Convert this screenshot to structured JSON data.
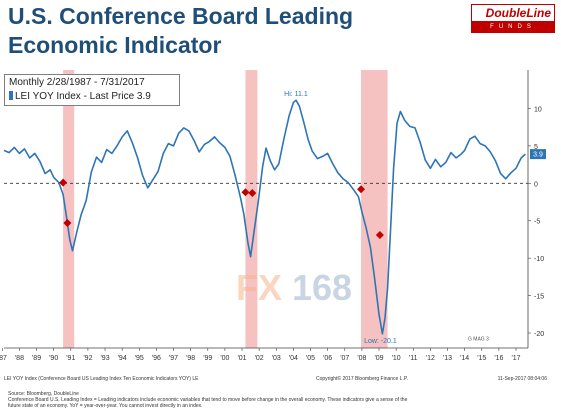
{
  "title": "U.S. Conference Board Leading Economic Indicator",
  "logo": {
    "top": "DoubleLine",
    "bottom": "FUNDS"
  },
  "legend": {
    "period": "Monthly 2/28/1987 - 7/31/2017",
    "series_label": "LEI YOY Index - Last Price 3.9"
  },
  "annotations": {
    "hi": "Hi: 11.1",
    "low": "Low: -20.1",
    "last_price": "3.9",
    "gmag": "G MAG 3"
  },
  "watermark": {
    "fx": "FX",
    "num": "168"
  },
  "bloomberg": {
    "left": "LEI YOY Index (Conference Board US Leading Index Ten Economic Indicators YOY) LE",
    "mid": "Copyright© 2017 Bloomberg Finance L.P.",
    "right": "11-Sep-2017 08:04:06"
  },
  "footnotes": [
    "Source: Bloomberg, DoubleLine",
    "Conference Board U.S. Leading Index = Leading indicators include economic variables that tend to move before change in the overall economy. These indicators give a sense of the",
    "future state of an economy. YoY = year-over-year. You cannot invest directly in an index."
  ],
  "colors": {
    "line": "#2e75b6",
    "title": "#1f4e79",
    "recession": "#f4b6b6",
    "marker": "#c00000",
    "brand": "#c00000"
  },
  "chart_data": {
    "type": "line",
    "x_unit": "year",
    "xlim": [
      1987.1,
      2017.7
    ],
    "ylim": [
      -22,
      13
    ],
    "y_ticks": [
      10,
      5,
      0,
      -5,
      -10,
      -15,
      -20
    ],
    "y_tick_labels": [
      "10",
      "5",
      "0",
      "-5",
      "-10",
      "-15",
      "-20"
    ],
    "x_tick_labels": [
      "'87",
      "'88",
      "'89",
      "'90",
      "'91",
      "'92",
      "'93",
      "'94",
      "'95",
      "'96",
      "'97",
      "'98",
      "'99",
      "'00",
      "'01",
      "'02",
      "'03",
      "'04",
      "'05",
      "'06",
      "'07",
      "'08",
      "'09",
      "'10",
      "'11",
      "'12",
      "'13",
      "'14",
      "'15",
      "'16",
      "'17"
    ],
    "x_tick_years": [
      1987,
      1988,
      1989,
      1990,
      1991,
      1992,
      1993,
      1994,
      1995,
      1996,
      1997,
      1998,
      1999,
      2000,
      2001,
      2002,
      2003,
      2004,
      2005,
      2006,
      2007,
      2008,
      2009,
      2010,
      2011,
      2012,
      2013,
      2014,
      2015,
      2016,
      2017
    ],
    "zero_line": true,
    "recessions": [
      [
        1990.55,
        1991.2
      ],
      [
        2001.2,
        2001.9
      ],
      [
        2007.95,
        2009.5
      ]
    ],
    "markers": [
      {
        "x": 1990.55,
        "y": 0.1
      },
      {
        "x": 1990.8,
        "y": -5.3
      },
      {
        "x": 2001.2,
        "y": -1.2
      },
      {
        "x": 2001.6,
        "y": -1.3
      },
      {
        "x": 2007.95,
        "y": -0.8
      },
      {
        "x": 2009.05,
        "y": -6.9
      }
    ],
    "series": [
      {
        "values": [
          [
            1987.1,
            4.4
          ],
          [
            1987.4,
            4.1
          ],
          [
            1987.7,
            4.8
          ],
          [
            1988.0,
            4.0
          ],
          [
            1988.3,
            4.6
          ],
          [
            1988.6,
            3.4
          ],
          [
            1988.9,
            4.0
          ],
          [
            1989.2,
            2.9
          ],
          [
            1989.5,
            1.3
          ],
          [
            1989.8,
            1.8
          ],
          [
            1990.0,
            0.8
          ],
          [
            1990.3,
            0.1
          ],
          [
            1990.55,
            -1.5
          ],
          [
            1990.75,
            -4.5
          ],
          [
            1990.95,
            -7.6
          ],
          [
            1991.1,
            -9.0
          ],
          [
            1991.35,
            -6.5
          ],
          [
            1991.6,
            -4.2
          ],
          [
            1991.9,
            -2.3
          ],
          [
            1992.2,
            1.5
          ],
          [
            1992.5,
            3.5
          ],
          [
            1992.8,
            2.8
          ],
          [
            1993.1,
            4.5
          ],
          [
            1993.4,
            4.0
          ],
          [
            1993.7,
            5.0
          ],
          [
            1994.0,
            6.2
          ],
          [
            1994.3,
            7.0
          ],
          [
            1994.6,
            5.4
          ],
          [
            1994.9,
            3.4
          ],
          [
            1995.2,
            1.0
          ],
          [
            1995.5,
            -0.6
          ],
          [
            1995.8,
            0.5
          ],
          [
            1996.1,
            1.6
          ],
          [
            1996.4,
            4.0
          ],
          [
            1996.7,
            5.3
          ],
          [
            1997.0,
            5.0
          ],
          [
            1997.3,
            6.7
          ],
          [
            1997.6,
            7.4
          ],
          [
            1997.9,
            7.0
          ],
          [
            1998.2,
            5.7
          ],
          [
            1998.5,
            4.2
          ],
          [
            1998.8,
            5.2
          ],
          [
            1999.1,
            5.6
          ],
          [
            1999.4,
            6.2
          ],
          [
            1999.7,
            5.4
          ],
          [
            2000.0,
            4.8
          ],
          [
            2000.3,
            3.6
          ],
          [
            2000.6,
            1.0
          ],
          [
            2000.9,
            -1.8
          ],
          [
            2001.1,
            -4.0
          ],
          [
            2001.35,
            -8.0
          ],
          [
            2001.5,
            -9.8
          ],
          [
            2001.7,
            -6.5
          ],
          [
            2001.95,
            -2.4
          ],
          [
            2002.2,
            2.2
          ],
          [
            2002.4,
            4.7
          ],
          [
            2002.65,
            3.0
          ],
          [
            2002.9,
            1.8
          ],
          [
            2003.15,
            2.6
          ],
          [
            2003.45,
            6.0
          ],
          [
            2003.75,
            9.0
          ],
          [
            2004.0,
            10.8
          ],
          [
            2004.15,
            11.1
          ],
          [
            2004.35,
            10.3
          ],
          [
            2004.6,
            8.2
          ],
          [
            2004.85,
            5.9
          ],
          [
            2005.1,
            4.3
          ],
          [
            2005.4,
            3.3
          ],
          [
            2005.7,
            3.6
          ],
          [
            2006.0,
            4.0
          ],
          [
            2006.3,
            2.6
          ],
          [
            2006.6,
            1.4
          ],
          [
            2006.9,
            0.6
          ],
          [
            2007.2,
            0.1
          ],
          [
            2007.5,
            -0.8
          ],
          [
            2007.8,
            -1.8
          ],
          [
            2008.0,
            -3.8
          ],
          [
            2008.25,
            -6.0
          ],
          [
            2008.5,
            -8.6
          ],
          [
            2008.75,
            -12.8
          ],
          [
            2009.0,
            -17.5
          ],
          [
            2009.2,
            -20.1
          ],
          [
            2009.35,
            -18.0
          ],
          [
            2009.5,
            -14.0
          ],
          [
            2009.7,
            -5.0
          ],
          [
            2009.85,
            2.0
          ],
          [
            2010.05,
            8.0
          ],
          [
            2010.25,
            9.6
          ],
          [
            2010.5,
            8.4
          ],
          [
            2010.8,
            7.6
          ],
          [
            2011.1,
            7.4
          ],
          [
            2011.4,
            5.5
          ],
          [
            2011.7,
            3.1
          ],
          [
            2012.0,
            2.0
          ],
          [
            2012.3,
            3.2
          ],
          [
            2012.6,
            2.2
          ],
          [
            2012.9,
            2.8
          ],
          [
            2013.2,
            4.1
          ],
          [
            2013.5,
            3.4
          ],
          [
            2013.8,
            3.9
          ],
          [
            2014.0,
            4.4
          ],
          [
            2014.3,
            5.9
          ],
          [
            2014.6,
            6.3
          ],
          [
            2014.9,
            5.3
          ],
          [
            2015.2,
            5.0
          ],
          [
            2015.5,
            4.2
          ],
          [
            2015.8,
            3.0
          ],
          [
            2016.1,
            1.3
          ],
          [
            2016.4,
            0.6
          ],
          [
            2016.7,
            1.4
          ],
          [
            2017.0,
            2.0
          ],
          [
            2017.3,
            3.4
          ],
          [
            2017.55,
            3.9
          ]
        ]
      }
    ]
  }
}
